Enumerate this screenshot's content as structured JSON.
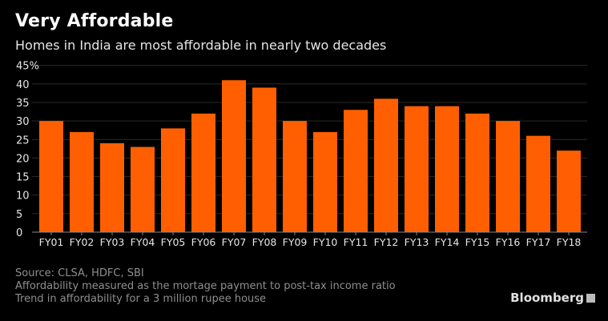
{
  "header": {
    "title": "Very Affordable",
    "subtitle": "Homes in India are most affordable in nearly two decades"
  },
  "footer": {
    "source": "Source: CLSA, HDFC, SBI",
    "note1": "Affordability measured as the mortage payment to post-tax income ratio",
    "note2": "Trend in affordability for a 3 million rupee house",
    "brand": "Bloomberg"
  },
  "chart_data": {
    "type": "bar",
    "title": "Very Affordable",
    "subtitle": "Homes in India are most affordable in nearly two decades",
    "categories": [
      "FY01",
      "FY02",
      "FY03",
      "FY04",
      "FY05",
      "FY06",
      "FY07",
      "FY08",
      "FY09",
      "FY10",
      "FY11",
      "FY12",
      "FY13",
      "FY14",
      "FY15",
      "FY16",
      "FY17",
      "FY18"
    ],
    "values": [
      30,
      27,
      24,
      23,
      28,
      32,
      41,
      39,
      30,
      27,
      33,
      36,
      34,
      34,
      32,
      30,
      26,
      22
    ],
    "ylim": [
      0,
      45
    ],
    "yticks": [
      "0",
      "5",
      "10",
      "15",
      "20",
      "25",
      "30",
      "35",
      "40",
      "45%"
    ],
    "grid": true,
    "colors": {
      "bar": "#ff5f00",
      "background": "#000000",
      "grid": "#2a2a2a"
    }
  }
}
